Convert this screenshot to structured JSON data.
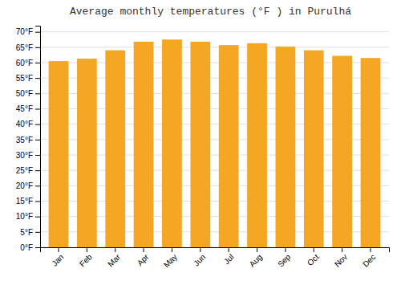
{
  "chart_data": {
    "type": "bar",
    "title": "Average monthly temperatures (°F ) in Purulhá",
    "categories": [
      "Jan",
      "Feb",
      "Mar",
      "Apr",
      "May",
      "Jun",
      "Jul",
      "Aug",
      "Sep",
      "Oct",
      "Nov",
      "Dec"
    ],
    "values": [
      60.5,
      61.3,
      64.0,
      66.8,
      67.5,
      66.8,
      65.7,
      66.3,
      65.2,
      64.0,
      62.2,
      61.5
    ],
    "color": "#F5A623",
    "ylim": [
      0,
      72
    ],
    "yticks": [
      {
        "value": 0,
        "label": "0°F"
      },
      {
        "value": 5,
        "label": "5°F"
      },
      {
        "value": 10,
        "label": "10°F"
      },
      {
        "value": 15,
        "label": "15°F"
      },
      {
        "value": 20,
        "label": "20°F"
      },
      {
        "value": 25,
        "label": "25°F"
      },
      {
        "value": 30,
        "label": "30°F"
      },
      {
        "value": 35,
        "label": "35°F"
      },
      {
        "value": 40,
        "label": "40°F"
      },
      {
        "value": 45,
        "label": "45°F"
      },
      {
        "value": 50,
        "label": "50°F"
      },
      {
        "value": 55,
        "label": "55°F"
      },
      {
        "value": 60,
        "label": "60°F"
      },
      {
        "value": 65,
        "label": "65°F"
      },
      {
        "value": 70,
        "label": "70°F"
      }
    ],
    "grid": true
  }
}
